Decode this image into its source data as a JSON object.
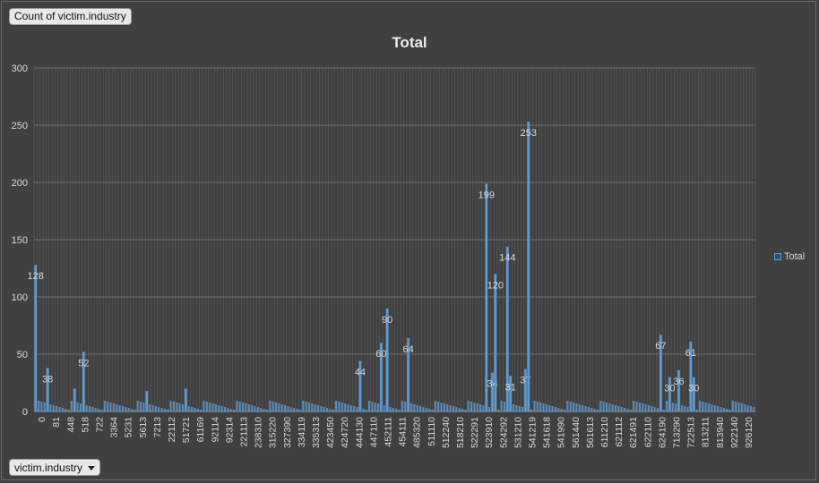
{
  "field_button": {
    "label": "Count of victim.industry"
  },
  "axis_button": {
    "label": "victim.industry"
  },
  "legend": {
    "label": "Total",
    "placement": "right"
  },
  "colors": {
    "background": "#404040",
    "bar": "#5b9bd5",
    "grid": "#7a7a7a",
    "text": "#d9d9d9"
  },
  "chart_data": {
    "type": "bar",
    "title": "Total",
    "xlabel": "",
    "ylabel": "",
    "ylim": [
      0,
      300
    ],
    "yticks": [
      0,
      50,
      100,
      150,
      200,
      250,
      300
    ],
    "grid": true,
    "category_count": 240,
    "x_tick_labels": [
      "0",
      "81",
      "448",
      "518",
      "722",
      "3364",
      "5231",
      "5613",
      "7213",
      "22112",
      "51721",
      "61169",
      "92114",
      "92314",
      "221113",
      "238310",
      "315220",
      "327390",
      "334119",
      "335313",
      "423450",
      "424720",
      "444130",
      "447110",
      "452111",
      "454111",
      "485320",
      "511110",
      "512240",
      "518210",
      "522291",
      "523910",
      "524292",
      "531210",
      "541219",
      "541618",
      "541990",
      "561440",
      "561613",
      "611210",
      "621112",
      "621491",
      "622110",
      "624190",
      "713290",
      "722513",
      "813211",
      "813940",
      "922140",
      "926120"
    ],
    "series": [
      {
        "name": "Total",
        "bars": [
          {
            "index": 0,
            "value": 128,
            "label": "128"
          },
          {
            "index": 4,
            "value": 38,
            "label": "38"
          },
          {
            "index": 13,
            "value": 20
          },
          {
            "index": 16,
            "value": 52,
            "label": "52"
          },
          {
            "index": 37,
            "value": 18
          },
          {
            "index": 50,
            "value": 20
          },
          {
            "index": 108,
            "value": 44,
            "label": "44"
          },
          {
            "index": 115,
            "value": 60,
            "label": "60"
          },
          {
            "index": 117,
            "value": 90,
            "label": "90"
          },
          {
            "index": 124,
            "value": 64,
            "label": "64"
          },
          {
            "index": 150,
            "value": 199,
            "label": "199"
          },
          {
            "index": 152,
            "value": 34,
            "label": "34"
          },
          {
            "index": 153,
            "value": 120,
            "label": "120"
          },
          {
            "index": 157,
            "value": 144,
            "label": "144"
          },
          {
            "index": 158,
            "value": 31,
            "label": "31"
          },
          {
            "index": 163,
            "value": 37,
            "label": "37"
          },
          {
            "index": 164,
            "value": 253,
            "label": "253"
          },
          {
            "index": 208,
            "value": 67,
            "label": "67"
          },
          {
            "index": 211,
            "value": 30,
            "label": "30"
          },
          {
            "index": 214,
            "value": 36,
            "label": "36"
          },
          {
            "index": 218,
            "value": 61,
            "label": "61"
          },
          {
            "index": 219,
            "value": 30,
            "label": "30"
          }
        ]
      }
    ]
  }
}
